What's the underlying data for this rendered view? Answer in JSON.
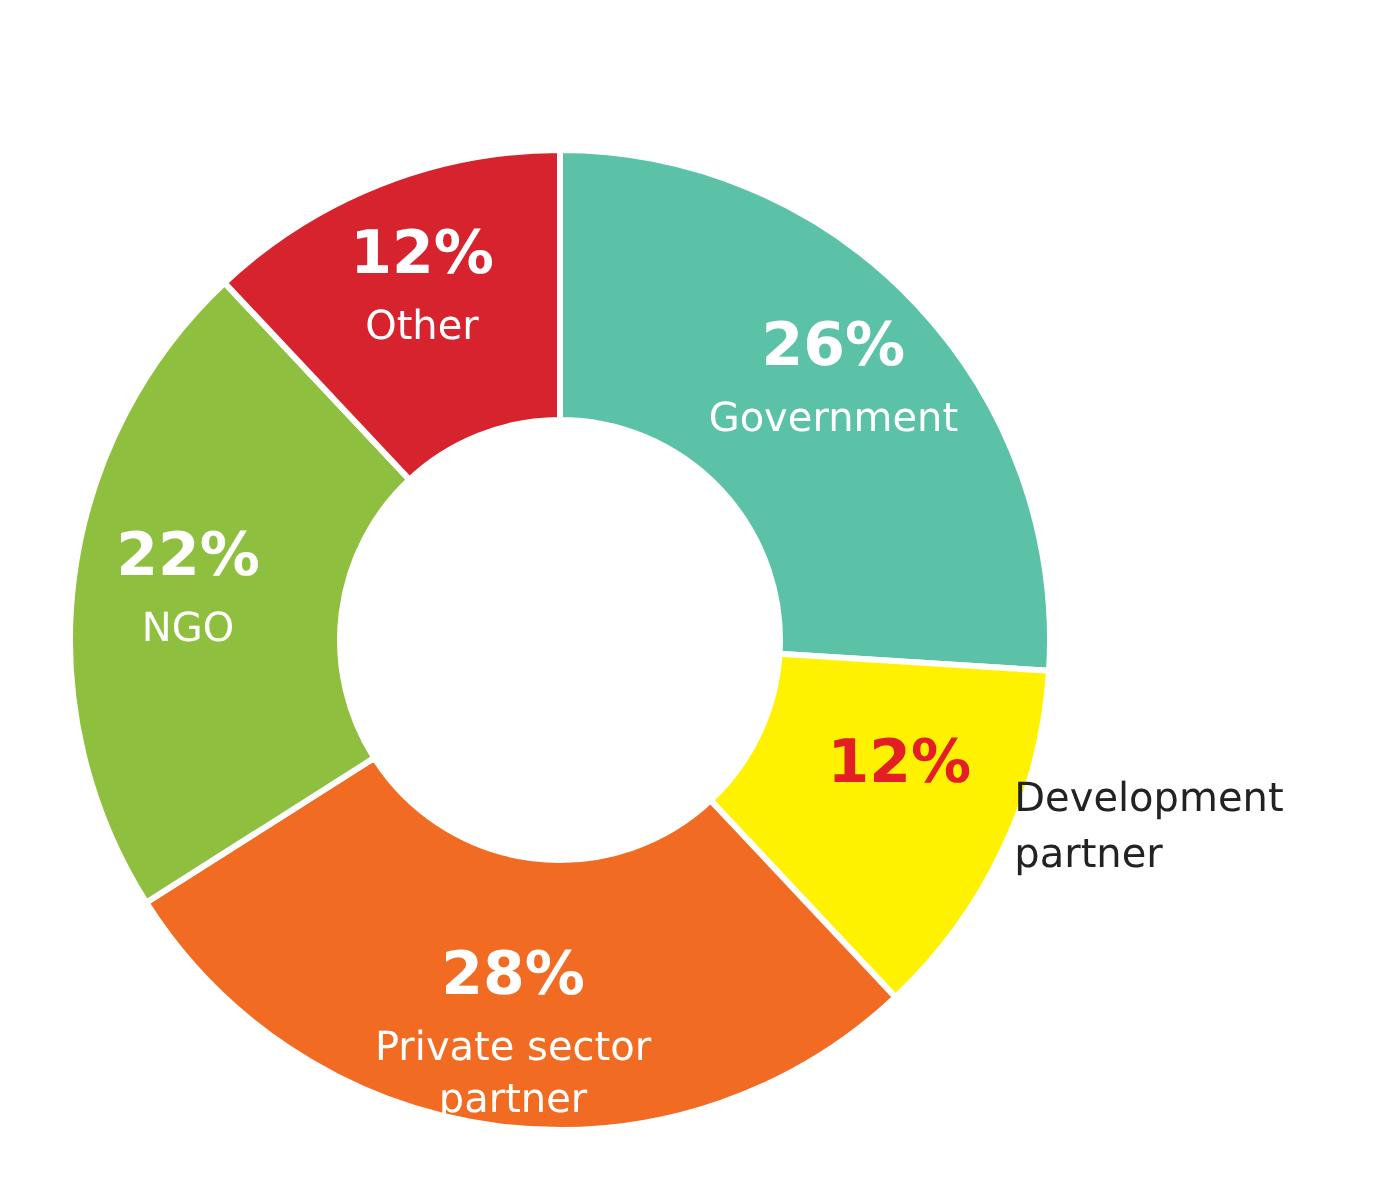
{
  "chart_data": {
    "type": "donut",
    "categories": [
      "Government",
      "Development partner",
      "Private sector partner",
      "NGO",
      "Other"
    ],
    "values": [
      26,
      12,
      28,
      22,
      12
    ],
    "value_labels": [
      "26%",
      "12%",
      "28%",
      "22%",
      "12%"
    ],
    "colors": [
      "#5bc2a8",
      "#fff200",
      "#f26b22",
      "#8fbf3f",
      "#d7232e"
    ]
  }
}
